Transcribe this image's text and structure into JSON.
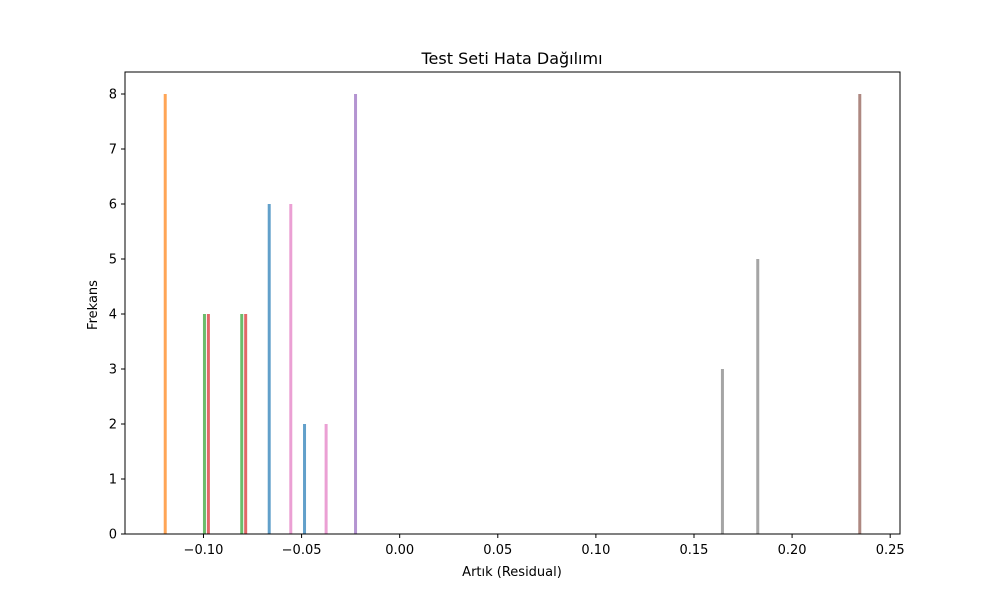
{
  "chart_data": {
    "type": "bar",
    "title": "Test Seti Hata Dağılımı",
    "xlabel": "Artık (Residual)",
    "ylabel": "Frekans",
    "xlim": [
      -0.14,
      0.255
    ],
    "ylim": [
      0,
      8.4
    ],
    "grid": false,
    "legend": "none",
    "x_ticks": [
      {
        "value": -0.1,
        "label": "−0.10"
      },
      {
        "value": -0.05,
        "label": "−0.05"
      },
      {
        "value": 0.0,
        "label": "0.00"
      },
      {
        "value": 0.05,
        "label": "0.05"
      },
      {
        "value": 0.1,
        "label": "0.10"
      },
      {
        "value": 0.15,
        "label": "0.15"
      },
      {
        "value": 0.2,
        "label": "0.20"
      },
      {
        "value": 0.25,
        "label": "0.25"
      }
    ],
    "y_ticks": [
      {
        "value": 0,
        "label": "0"
      },
      {
        "value": 1,
        "label": "1"
      },
      {
        "value": 2,
        "label": "2"
      },
      {
        "value": 3,
        "label": "3"
      },
      {
        "value": 4,
        "label": "4"
      },
      {
        "value": 5,
        "label": "5"
      },
      {
        "value": 6,
        "label": "6"
      },
      {
        "value": 7,
        "label": "7"
      },
      {
        "value": 8,
        "label": "8"
      }
    ],
    "series": [
      {
        "color": "#1f77b4",
        "bins": [
          {
            "x": -0.0665,
            "y": 6
          },
          {
            "x": -0.0485,
            "y": 2
          }
        ]
      },
      {
        "color": "#ff7f0e",
        "bins": [
          {
            "x": -0.1195,
            "y": 8
          }
        ]
      },
      {
        "color": "#2ca02c",
        "bins": [
          {
            "x": -0.0995,
            "y": 4
          },
          {
            "x": -0.0805,
            "y": 4
          }
        ]
      },
      {
        "color": "#d62728",
        "bins": [
          {
            "x": -0.0975,
            "y": 4
          },
          {
            "x": -0.0785,
            "y": 4
          }
        ]
      },
      {
        "color": "#9467bd",
        "bins": [
          {
            "x": -0.0225,
            "y": 8
          }
        ]
      },
      {
        "color": "#8c564b",
        "bins": [
          {
            "x": 0.2345,
            "y": 8
          }
        ]
      },
      {
        "color": "#e377c2",
        "bins": [
          {
            "x": -0.0555,
            "y": 6
          },
          {
            "x": -0.0375,
            "y": 2
          }
        ]
      },
      {
        "color": "#7f7f7f",
        "bins": [
          {
            "x": 0.1645,
            "y": 3
          },
          {
            "x": 0.1825,
            "y": 5
          }
        ]
      }
    ]
  }
}
